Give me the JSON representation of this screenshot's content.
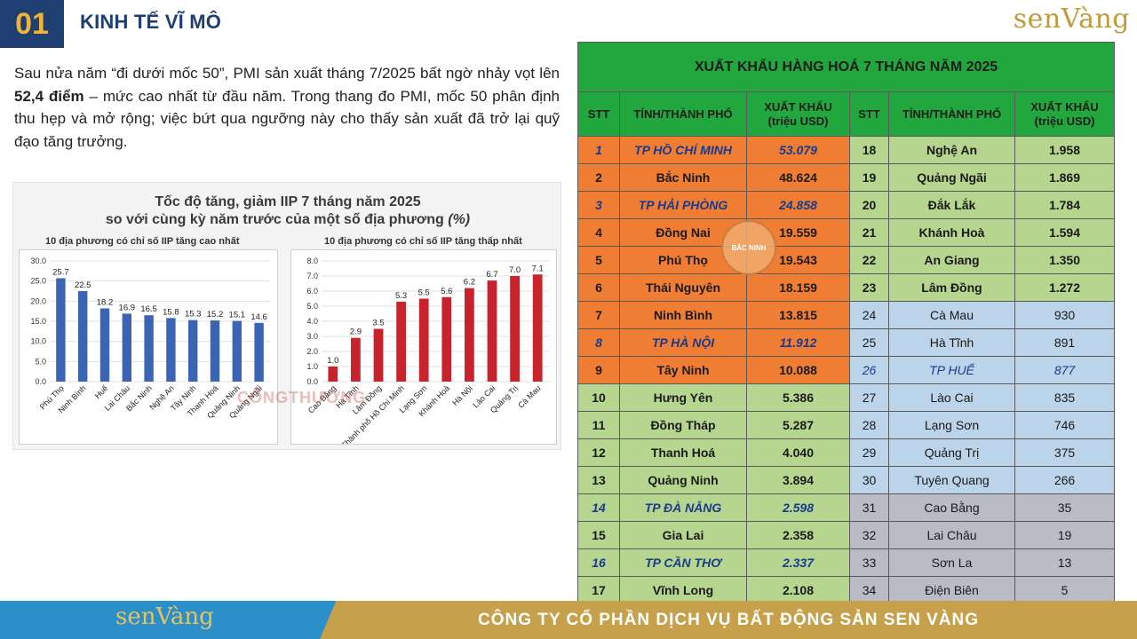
{
  "header": {
    "section_number": "01",
    "section_title": "KINH TẾ VĨ MÔ",
    "brand_logo": "senVàng"
  },
  "intro": {
    "part1": "Sau nửa năm “đi dưới mốc 50”, PMI sản xuất tháng 7/2025 bất ngờ nhảy vọt lên ",
    "highlight": "52,4 điểm",
    "part2": " – mức cao nhất từ đầu năm. Trong thang đo PMI, mốc 50 phân định thu hẹp và mở rộng; việc bứt qua ngưỡng này cho thấy sản xuất đã trở lại quỹ đạo tăng trưởng."
  },
  "chart_panel": {
    "title_line1": "Tốc độ tăng, giảm IIP 7 tháng năm 2025",
    "title_line2a": "so với cùng kỳ năm trước của một số địa phương ",
    "title_line2b": "(%)",
    "watermark": "CÔNGTHƯƠNG"
  },
  "chart_data": [
    {
      "type": "bar",
      "title": "10 địa phương có chỉ số IIP tăng cao nhất",
      "categories": [
        "Phú Thọ",
        "Ninh Bình",
        "Huế",
        "Lai Châu",
        "Bắc Ninh",
        "Nghệ An",
        "Tây Ninh",
        "Thanh Hoá",
        "Quảng Ninh",
        "Quảng Ngãi"
      ],
      "values": [
        25.7,
        22.5,
        18.2,
        16.9,
        16.5,
        15.8,
        15.3,
        15.2,
        15.1,
        14.6
      ],
      "value_labels": [
        "25.7",
        "22.5",
        "18.2",
        "16.9",
        "16.5",
        "15.8",
        "15.3",
        "15.2",
        "15.1",
        "14.6"
      ],
      "ylim": [
        0,
        30
      ],
      "yticks": [
        "0.0",
        "5.0",
        "10.0",
        "15.0",
        "20.0",
        "25.0",
        "30.0"
      ],
      "color": "#3c64b4",
      "grid": true
    },
    {
      "type": "bar",
      "title": "10 địa phương có chỉ số IIP tăng thấp nhất",
      "categories": [
        "Cao Bằng",
        "Hà Tĩnh",
        "Lâm Đồng",
        "Thành phố Hồ Chí Minh",
        "Lạng Sơn",
        "Khánh Hoà",
        "Hà Nội",
        "Lào Cai",
        "Quảng Trị",
        "Cà Mau"
      ],
      "values": [
        1.0,
        2.9,
        3.5,
        5.3,
        5.5,
        5.6,
        6.2,
        6.7,
        7.0,
        7.1
      ],
      "value_labels": [
        "1.0",
        "2.9",
        "3.5",
        "5.3",
        "5.5",
        "5.6",
        "6.2",
        "6.7",
        "7.0",
        "7.1"
      ],
      "ylim": [
        0,
        8
      ],
      "yticks": [
        "0.0",
        "1.0",
        "2.0",
        "3.0",
        "4.0",
        "5.0",
        "6.0",
        "7.0",
        "8.0"
      ],
      "color": "#c8232c",
      "grid": true
    }
  ],
  "table": {
    "title": "XUẤT KHẨU HÀNG HOÁ 7 THÁNG NĂM 2025",
    "headers": {
      "stt": "STT",
      "province": "TỈNH/THÀNH PHỐ",
      "export_line1": "XUẤT KHẨU",
      "export_line2": "(triệu USD)"
    },
    "rows": [
      {
        "l_stt": "1",
        "l_name": "TP HỒ CHÍ MINH",
        "l_val": "53.079",
        "l_color": "orange",
        "l_hl": true,
        "r_stt": "18",
        "r_name": "Nghệ An",
        "r_val": "1.958",
        "r_color": "green",
        "r_hl": false
      },
      {
        "l_stt": "2",
        "l_name": "Bắc Ninh",
        "l_val": "48.624",
        "l_color": "orange",
        "l_hl": false,
        "r_stt": "19",
        "r_name": "Quảng Ngãi",
        "r_val": "1.869",
        "r_color": "green",
        "r_hl": false
      },
      {
        "l_stt": "3",
        "l_name": "TP HẢI PHÒNG",
        "l_val": "24.858",
        "l_color": "orange",
        "l_hl": true,
        "r_stt": "20",
        "r_name": "Đắk Lắk",
        "r_val": "1.784",
        "r_color": "green",
        "r_hl": false
      },
      {
        "l_stt": "4",
        "l_name": "Đồng Nai",
        "l_val": "19.559",
        "l_color": "orange",
        "l_hl": false,
        "r_stt": "21",
        "r_name": "Khánh Hoà",
        "r_val": "1.594",
        "r_color": "green",
        "r_hl": false
      },
      {
        "l_stt": "5",
        "l_name": "Phú Thọ",
        "l_val": "19.543",
        "l_color": "orange",
        "l_hl": false,
        "r_stt": "22",
        "r_name": "An Giang",
        "r_val": "1.350",
        "r_color": "green",
        "r_hl": false
      },
      {
        "l_stt": "6",
        "l_name": "Thái Nguyên",
        "l_val": "18.159",
        "l_color": "orange",
        "l_hl": false,
        "r_stt": "23",
        "r_name": "Lâm Đồng",
        "r_val": "1.272",
        "r_color": "green",
        "r_hl": false
      },
      {
        "l_stt": "7",
        "l_name": "Ninh Bình",
        "l_val": "13.815",
        "l_color": "orange",
        "l_hl": false,
        "r_stt": "24",
        "r_name": "Cà Mau",
        "r_val": "930",
        "r_color": "blue",
        "r_hl": false
      },
      {
        "l_stt": "8",
        "l_name": "TP HÀ NỘI",
        "l_val": "11.912",
        "l_color": "orange",
        "l_hl": true,
        "r_stt": "25",
        "r_name": "Hà Tĩnh",
        "r_val": "891",
        "r_color": "blue",
        "r_hl": false
      },
      {
        "l_stt": "9",
        "l_name": "Tây Ninh",
        "l_val": "10.088",
        "l_color": "orange",
        "l_hl": false,
        "r_stt": "26",
        "r_name": "TP HUẾ",
        "r_val": "877",
        "r_color": "blue",
        "r_hl": true
      },
      {
        "l_stt": "10",
        "l_name": "Hưng Yên",
        "l_val": "5.386",
        "l_color": "green",
        "l_hl": false,
        "r_stt": "27",
        "r_name": "Lào Cai",
        "r_val": "835",
        "r_color": "blue",
        "r_hl": false
      },
      {
        "l_stt": "11",
        "l_name": "Đồng Tháp",
        "l_val": "5.287",
        "l_color": "green",
        "l_hl": false,
        "r_stt": "28",
        "r_name": "Lạng Sơn",
        "r_val": "746",
        "r_color": "blue",
        "r_hl": false
      },
      {
        "l_stt": "12",
        "l_name": "Thanh Hoá",
        "l_val": "4.040",
        "l_color": "green",
        "l_hl": false,
        "r_stt": "29",
        "r_name": "Quảng Trị",
        "r_val": "375",
        "r_color": "blue",
        "r_hl": false
      },
      {
        "l_stt": "13",
        "l_name": "Quảng Ninh",
        "l_val": "3.894",
        "l_color": "green",
        "l_hl": false,
        "r_stt": "30",
        "r_name": "Tuyên Quang",
        "r_val": "266",
        "r_color": "blue",
        "r_hl": false
      },
      {
        "l_stt": "14",
        "l_name": "TP ĐÀ NẴNG",
        "l_val": "2.598",
        "l_color": "green",
        "l_hl": true,
        "r_stt": "31",
        "r_name": "Cao Bằng",
        "r_val": "35",
        "r_color": "gray",
        "r_hl": false
      },
      {
        "l_stt": "15",
        "l_name": "Gia Lai",
        "l_val": "2.358",
        "l_color": "green",
        "l_hl": false,
        "r_stt": "32",
        "r_name": "Lai Châu",
        "r_val": "19",
        "r_color": "gray",
        "r_hl": false
      },
      {
        "l_stt": "16",
        "l_name": "TP CẦN THƠ",
        "l_val": "2.337",
        "l_color": "green",
        "l_hl": true,
        "r_stt": "33",
        "r_name": "Sơn La",
        "r_val": "13",
        "r_color": "gray",
        "r_hl": false
      },
      {
        "l_stt": "17",
        "l_name": "Vĩnh Long",
        "l_val": "2.108",
        "l_color": "green",
        "l_hl": false,
        "r_stt": "34",
        "r_name": "Điện Biên",
        "r_val": "5",
        "r_color": "gray",
        "r_hl": false
      }
    ],
    "stamp": "BẮC NINH"
  },
  "footer": {
    "brand_logo": "senVàng",
    "company": "CÔNG TY CỔ PHẦN DỊCH VỤ BẤT ĐỘNG SẢN SEN VÀNG"
  },
  "colors": {
    "navy": "#1f3f73",
    "gold": "#c6a04a",
    "table_green": "#22a63e",
    "orange": "#ef7d33",
    "light_green": "#b6d690",
    "light_blue": "#bcd4ea",
    "gray": "#b9bcc6",
    "footer_blue": "#2b8fc9"
  }
}
